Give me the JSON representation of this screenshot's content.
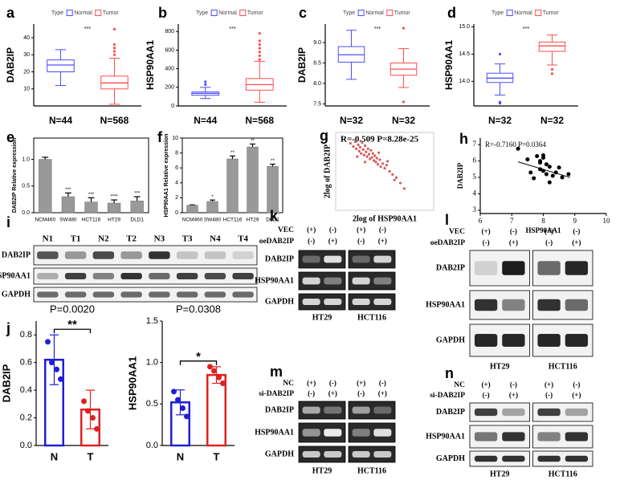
{
  "chart_data": [
    {
      "panel": "a",
      "type": "box",
      "ylabel": "DAB2IP",
      "legend_title": "Type",
      "annotation": "***",
      "categories": [
        "N=44",
        "N=568"
      ],
      "ylim": [
        0,
        48
      ],
      "yticks": [
        10,
        20,
        30,
        40
      ],
      "series": [
        {
          "name": "Normal",
          "color": "#4d4dff",
          "box": [
            12,
            20,
            24,
            27,
            33
          ],
          "outliers": []
        },
        {
          "name": "Tumor",
          "color": "#ff4d4d",
          "box": [
            1,
            10,
            13.5,
            17.5,
            28
          ],
          "outliers": [
            30,
            32,
            34,
            36,
            45
          ]
        }
      ]
    },
    {
      "panel": "b",
      "type": "box",
      "ylabel": "HSP90AA1",
      "legend_title": "Type",
      "annotation": "***",
      "categories": [
        "N=44",
        "N=568"
      ],
      "ylim": [
        0,
        880
      ],
      "yticks": [
        0,
        200,
        400,
        600,
        800
      ],
      "series": [
        {
          "name": "Normal",
          "color": "#4d4dff",
          "box": [
            80,
            115,
            135,
            150,
            200
          ],
          "outliers": [
            230,
            260
          ]
        },
        {
          "name": "Tumor",
          "color": "#ff4d4d",
          "box": [
            40,
            170,
            230,
            295,
            480
          ],
          "outliers": [
            500,
            540,
            580,
            620,
            660,
            700,
            780
          ]
        }
      ]
    },
    {
      "panel": "c",
      "type": "box",
      "ylabel": "DAB2IP",
      "legend_title": "Type",
      "annotation": "***",
      "categories": [
        "N=32",
        "N=32"
      ],
      "ylim": [
        7.45,
        9.45
      ],
      "yticks": [
        7.5,
        {
          "value": 8,
          "label": "8.0"
        },
        8.5,
        {
          "value": 9,
          "label": "9.0"
        }
      ],
      "series": [
        {
          "name": "Normal",
          "color": "#4d4dff",
          "box": [
            8.1,
            8.52,
            8.7,
            8.9,
            9.3
          ],
          "outliers": []
        },
        {
          "name": "Tumor",
          "color": "#ff4d4d",
          "box": [
            7.9,
            8.2,
            8.35,
            8.5,
            8.85
          ],
          "outliers": [
            9.35,
            7.55
          ]
        }
      ]
    },
    {
      "panel": "d",
      "type": "box",
      "ylabel": "HSP90AA1",
      "legend_title": "Type",
      "annotation": "***",
      "categories": [
        "N=32",
        "N=32"
      ],
      "ylim": [
        13.55,
        15.05
      ],
      "yticks": [
        {
          "value": 14,
          "label": "14.0"
        },
        14.5,
        {
          "value": 15,
          "label": "15.0"
        }
      ],
      "series": [
        {
          "name": "Normal",
          "color": "#4d4dff",
          "box": [
            13.75,
            13.98,
            14.06,
            14.15,
            14.32
          ],
          "outliers": [
            14.5,
            13.62,
            13.6
          ]
        },
        {
          "name": "Tumor",
          "color": "#ff4d4d",
          "box": [
            14.3,
            14.55,
            14.65,
            14.72,
            14.85
          ],
          "outliers": [
            14.22,
            14.14
          ]
        }
      ]
    },
    {
      "panel": "e",
      "type": "bar",
      "ylabel": "DAB2IP Relative expression",
      "categories": [
        "NCM460",
        "SW480",
        "HCT116",
        "HT29",
        "DLD1"
      ],
      "values": [
        1.0,
        0.3,
        0.2,
        0.18,
        0.22
      ],
      "errors": [
        0.04,
        0.07,
        0.08,
        0.06,
        0.08
      ],
      "value_annotations": [
        null,
        "***",
        "***",
        "****",
        "***"
      ],
      "color": "#999999",
      "ylim": [
        0,
        1.4
      ],
      "yticks": [
        {
          "value": 0,
          "label": "0.0"
        },
        0.5,
        {
          "value": 1,
          "label": "1.0"
        }
      ]
    },
    {
      "panel": "f",
      "type": "bar",
      "ylabel": "HSP90AA1 Relative expression",
      "categories": [
        "NCM460",
        "SW480",
        "HCT116",
        "HT29",
        "DLD1"
      ],
      "values": [
        1.0,
        1.5,
        7.2,
        8.8,
        6.2
      ],
      "errors": [
        0.05,
        0.2,
        0.4,
        0.4,
        0.3
      ],
      "value_annotations": [
        null,
        "*",
        "**",
        "**",
        "**"
      ],
      "color": "#999999",
      "ylim": [
        0,
        10
      ],
      "yticks": [
        0,
        2,
        4,
        6,
        8,
        10
      ]
    },
    {
      "panel": "g",
      "type": "scatter",
      "annotation": "R=-0.509 P=8.28e-25",
      "xlabel": "2log of HSP90AA1",
      "ylabel": "2log of DAB2IP",
      "xlim": [
        0,
        10
      ],
      "ylim": [
        0,
        10
      ],
      "color": "#cc3333",
      "x": [
        1.5,
        1.8,
        2.0,
        2.1,
        2.3,
        2.4,
        2.5,
        2.6,
        2.7,
        2.8,
        2.9,
        3.0,
        3.1,
        3.2,
        3.3,
        3.4,
        3.5,
        3.6,
        3.7,
        3.8,
        3.9,
        4.0,
        4.1,
        4.2,
        4.3,
        4.5,
        4.6,
        4.8,
        5.0,
        5.2,
        5.5,
        5.8,
        6.2,
        6.6,
        7.0,
        4.4,
        3.0,
        2.2,
        5.3,
        6.0
      ],
      "y": [
        8.6,
        8.2,
        8.8,
        7.9,
        8.4,
        7.6,
        8.1,
        7.3,
        8.7,
        7.8,
        7.1,
        8.3,
        7.5,
        6.9,
        7.9,
        7.2,
        6.6,
        7.7,
        6.8,
        7.3,
        6.4,
        7.0,
        6.2,
        6.7,
        5.9,
        6.5,
        5.6,
        6.0,
        5.4,
        5.8,
        5.0,
        4.6,
        4.2,
        3.5,
        2.8,
        7.4,
        6.2,
        6.9,
        6.3,
        3.9
      ]
    },
    {
      "panel": "h",
      "type": "scatter",
      "annotation": "R=-0.7160 P=0.0364",
      "xlabel": "HSP90AA1",
      "ylabel": "DAB2IP",
      "xlim": [
        6,
        10
      ],
      "ylim": [
        2.8,
        7.4
      ],
      "xticks": [
        6,
        7,
        8,
        9,
        10
      ],
      "yticks": [
        3,
        4,
        5,
        6,
        7
      ],
      "color": "#000000",
      "x": [
        7.2,
        7.5,
        7.6,
        7.8,
        7.9,
        7.9,
        8.0,
        8.0,
        8.1,
        8.1,
        8.2,
        8.2,
        8.3,
        8.4,
        8.5,
        8.6,
        7.7,
        8.0,
        8.8,
        7.9
      ],
      "y": [
        6.75,
        6.1,
        5.3,
        6.3,
        5.5,
        5.9,
        6.35,
        5.4,
        5.2,
        5.8,
        5.65,
        4.7,
        5.1,
        5.3,
        5.6,
        5.0,
        4.95,
        6.2,
        5.2,
        6.0
      ],
      "fit": {
        "x": [
          7.2,
          8.85
        ],
        "y": [
          5.95,
          5.0
        ]
      }
    },
    {
      "panel": "j",
      "type": "bar",
      "title": "P=0.0020",
      "significance": "**",
      "ylabel": "DAB2IP",
      "categories": [
        "N",
        "T"
      ],
      "values": [
        0.62,
        0.26
      ],
      "errors": [
        0.18,
        0.14
      ],
      "points": [
        [
          0.75,
          0.6,
          0.55,
          0.48
        ],
        [
          0.32,
          0.25,
          0.2,
          0.12
        ]
      ],
      "colors": [
        "#1f1fd6",
        "#e02020"
      ],
      "ylim": [
        0,
        0.9
      ],
      "yticks": [
        {
          "value": 0,
          "label": "0.0"
        },
        0.2,
        0.4,
        0.6,
        0.8
      ]
    },
    {
      "type": "bar",
      "title": "P=0.0308",
      "significance": "*",
      "ylabel": "HSP90AA1",
      "categories": [
        "N",
        "T"
      ],
      "values": [
        0.52,
        0.85
      ],
      "errors": [
        0.15,
        0.1
      ],
      "points": [
        [
          0.65,
          0.55,
          0.45,
          0.35
        ],
        [
          0.95,
          0.9,
          0.82,
          0.75
        ]
      ],
      "colors": [
        "#1f1fd6",
        "#e02020"
      ],
      "ylim": [
        0,
        1.5
      ],
      "yticks": [
        {
          "value": 0,
          "label": "0.0"
        },
        0.5,
        {
          "value": 1,
          "label": "1.0"
        },
        1.5
      ]
    }
  ],
  "blots": [
    {
      "panel": "i",
      "lanes": [
        "N1",
        "T1",
        "N2",
        "T2",
        "N3",
        "T3",
        "N4",
        "T4"
      ],
      "rows": [
        "DAB2IP",
        "HSP90AA1",
        "GAPDH"
      ]
    },
    {
      "panel": "k",
      "conditions": [
        {
          "name": "VEC",
          "marks": [
            "(+)",
            "(-)",
            "(+)",
            "(-)"
          ]
        },
        {
          "name": "oeDAB2IP",
          "marks": [
            "(-)",
            "(+)",
            "(-)",
            "(+)"
          ]
        }
      ],
      "rows": [
        "DAB2IP",
        "HSP90AA1",
        "GAPDH"
      ],
      "groups": [
        "HT29",
        "HCT116"
      ]
    },
    {
      "panel": "l",
      "conditions": [
        {
          "name": "VEC",
          "marks": [
            "(+)",
            "(-)",
            "(+)",
            "(-)"
          ]
        },
        {
          "name": "oeDAB2IP",
          "marks": [
            "(-)",
            "(+)",
            "(-)",
            "(+)"
          ]
        }
      ],
      "rows": [
        "DAB2IP",
        "HSP90AA1",
        "GAPDH"
      ],
      "groups": [
        "HT29",
        "HCT116"
      ]
    },
    {
      "panel": "m",
      "conditions": [
        {
          "name": "NC",
          "marks": [
            "(+)",
            "(-)",
            "(+)",
            "(-)"
          ]
        },
        {
          "name": "si-DAB2IP",
          "marks": [
            "(-)",
            "(+)",
            "(-)",
            "(+)"
          ]
        }
      ],
      "rows": [
        "DAB2IP",
        "HSP90AA1",
        "GAPDH"
      ],
      "groups": [
        "HT29",
        "HCT116"
      ]
    },
    {
      "panel": "n",
      "conditions": [
        {
          "name": "NC",
          "marks": [
            "(+)",
            "(-)",
            "(+)",
            "(-)"
          ]
        },
        {
          "name": "si-DAB2IP",
          "marks": [
            "(-)",
            "(+)",
            "(-)",
            "(+)"
          ]
        }
      ],
      "rows": [
        "DAB2IP",
        "HSP90AA1",
        "GAPDH"
      ],
      "groups": [
        "HT29",
        "HCT116"
      ]
    }
  ]
}
